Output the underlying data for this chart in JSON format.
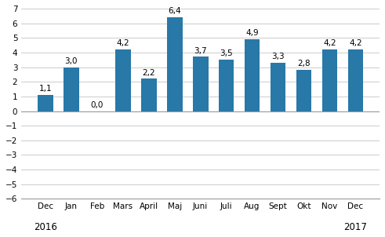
{
  "categories": [
    "Dec",
    "Jan",
    "Feb",
    "Mars",
    "April",
    "Maj",
    "Juni",
    "Juli",
    "Aug",
    "Sept",
    "Okt",
    "Nov",
    "Dec"
  ],
  "values": [
    1.1,
    3.0,
    0.0,
    4.2,
    2.2,
    6.4,
    3.7,
    3.5,
    4.9,
    3.3,
    2.8,
    4.2,
    4.2
  ],
  "bar_color": "#2878a8",
  "ylim": [
    -6,
    7
  ],
  "yticks": [
    -6,
    -5,
    -4,
    -3,
    -2,
    -1,
    0,
    1,
    2,
    3,
    4,
    5,
    6,
    7
  ],
  "year_labels": [
    [
      "2016",
      0
    ],
    [
      "2017",
      12
    ]
  ],
  "background_color": "#ffffff",
  "grid_color": "#cccccc",
  "label_fontsize": 7.5,
  "value_fontsize": 7.5,
  "year_fontsize": 8.5
}
